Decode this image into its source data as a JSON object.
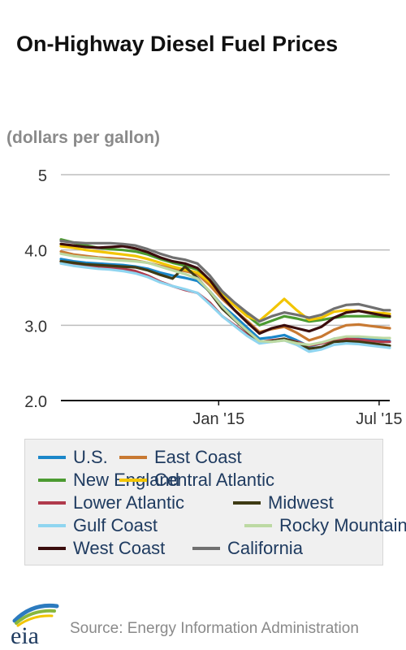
{
  "title": "On-Highway Diesel Fuel Prices",
  "source": "Source: Energy Information Administration",
  "logo_text": "eia",
  "chart_data": {
    "type": "line",
    "title": "On-Highway Diesel Fuel Prices",
    "units": "(dollars per gallon)",
    "xlabel": "",
    "ylabel": "",
    "x_ticks": [
      "Jan '15",
      "Jul '15"
    ],
    "y_ticks": [
      "5",
      "4.0",
      "3.0",
      "2.0"
    ],
    "ylim": [
      2.0,
      5.0
    ],
    "grid": true,
    "legend_position": "bottom",
    "x": [
      "2014-07-07",
      "2014-07-21",
      "2014-08-04",
      "2014-08-18",
      "2014-09-01",
      "2014-09-15",
      "2014-09-29",
      "2014-10-13",
      "2014-10-27",
      "2014-11-10",
      "2014-11-24",
      "2014-12-08",
      "2014-12-22",
      "2015-01-05",
      "2015-01-19",
      "2015-02-02",
      "2015-02-16",
      "2015-03-02",
      "2015-03-16",
      "2015-03-30",
      "2015-04-13",
      "2015-04-27",
      "2015-05-11",
      "2015-05-25",
      "2015-06-08",
      "2015-06-22",
      "2015-07-06",
      "2015-07-13"
    ],
    "series": [
      {
        "name": "U.S.",
        "color": "#1b87c9",
        "values": [
          3.88,
          3.85,
          3.83,
          3.82,
          3.81,
          3.8,
          3.78,
          3.75,
          3.7,
          3.66,
          3.63,
          3.59,
          3.45,
          3.26,
          3.12,
          2.97,
          2.82,
          2.84,
          2.87,
          2.8,
          2.72,
          2.76,
          2.82,
          2.84,
          2.83,
          2.81,
          2.8,
          2.79
        ]
      },
      {
        "name": "East Coast",
        "color": "#c87932",
        "values": [
          3.98,
          3.94,
          3.92,
          3.9,
          3.89,
          3.88,
          3.86,
          3.83,
          3.79,
          3.75,
          3.72,
          3.68,
          3.53,
          3.35,
          3.2,
          3.06,
          2.91,
          2.95,
          2.98,
          2.9,
          2.8,
          2.85,
          2.94,
          3.0,
          3.01,
          2.99,
          2.97,
          2.96
        ]
      },
      {
        "name": "New England",
        "color": "#4c9b31",
        "values": [
          4.14,
          4.1,
          4.06,
          4.03,
          4.01,
          4.0,
          3.98,
          3.94,
          3.88,
          3.83,
          3.79,
          3.74,
          3.6,
          3.42,
          3.27,
          3.13,
          3.0,
          3.06,
          3.12,
          3.09,
          3.05,
          3.07,
          3.1,
          3.12,
          3.12,
          3.12,
          3.11,
          3.11
        ]
      },
      {
        "name": "Central Atlantic",
        "color": "#f2c500",
        "values": [
          4.05,
          4.03,
          4.0,
          3.98,
          3.96,
          3.94,
          3.92,
          3.88,
          3.83,
          3.78,
          3.74,
          3.7,
          3.57,
          3.4,
          3.26,
          3.12,
          3.06,
          3.2,
          3.35,
          3.2,
          3.07,
          3.1,
          3.18,
          3.2,
          3.19,
          3.17,
          3.16,
          3.15
        ]
      },
      {
        "name": "Lower Atlantic",
        "color": "#b03a4c",
        "values": [
          3.85,
          3.82,
          3.8,
          3.78,
          3.77,
          3.75,
          3.72,
          3.66,
          3.58,
          3.52,
          3.47,
          3.43,
          3.3,
          3.12,
          3.0,
          2.88,
          2.78,
          2.8,
          2.82,
          2.78,
          2.73,
          2.76,
          2.8,
          2.82,
          2.81,
          2.79,
          2.78,
          2.78
        ]
      },
      {
        "name": "Midwest",
        "color": "#3e3a14",
        "values": [
          3.85,
          3.83,
          3.81,
          3.8,
          3.79,
          3.78,
          3.77,
          3.73,
          3.67,
          3.62,
          3.78,
          3.63,
          3.44,
          3.22,
          3.07,
          2.92,
          2.77,
          2.79,
          2.82,
          2.77,
          2.69,
          2.71,
          2.78,
          2.79,
          2.78,
          2.76,
          2.74,
          2.73
        ]
      },
      {
        "name": "Gulf Coast",
        "color": "#8fd5f0",
        "values": [
          3.82,
          3.79,
          3.77,
          3.75,
          3.74,
          3.72,
          3.69,
          3.64,
          3.57,
          3.52,
          3.48,
          3.43,
          3.28,
          3.12,
          2.99,
          2.86,
          2.76,
          2.78,
          2.8,
          2.74,
          2.65,
          2.68,
          2.74,
          2.76,
          2.75,
          2.73,
          2.71,
          2.7
        ]
      },
      {
        "name": "Rocky Mountain",
        "color": "#bcd9a3",
        "values": [
          3.95,
          3.92,
          3.9,
          3.89,
          3.87,
          3.86,
          3.85,
          3.83,
          3.78,
          3.73,
          3.68,
          3.62,
          3.45,
          3.25,
          3.08,
          2.93,
          2.79,
          2.78,
          2.8,
          2.76,
          2.74,
          2.77,
          2.82,
          2.85,
          2.85,
          2.84,
          2.83,
          2.83
        ]
      },
      {
        "name": "West Coast",
        "color": "#3a0d0d",
        "values": [
          4.08,
          4.06,
          4.04,
          4.03,
          4.04,
          4.05,
          4.02,
          3.97,
          3.9,
          3.85,
          3.82,
          3.76,
          3.6,
          3.38,
          3.2,
          3.04,
          2.89,
          2.96,
          3.0,
          2.96,
          2.92,
          2.98,
          3.1,
          3.17,
          3.19,
          3.16,
          3.13,
          3.12
        ]
      },
      {
        "name": "California",
        "color": "#707070",
        "values": [
          4.12,
          4.1,
          4.09,
          4.09,
          4.09,
          4.08,
          4.06,
          4.01,
          3.95,
          3.9,
          3.87,
          3.82,
          3.66,
          3.45,
          3.3,
          3.17,
          3.05,
          3.12,
          3.17,
          3.14,
          3.1,
          3.14,
          3.22,
          3.27,
          3.28,
          3.24,
          3.2,
          3.2
        ]
      }
    ]
  }
}
